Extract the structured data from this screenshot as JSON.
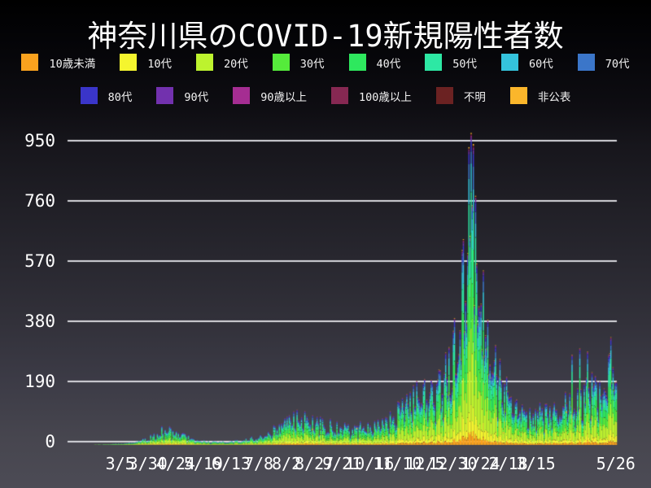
{
  "title": "神奈川県のCOVID-19新規陽性者数",
  "legend": {
    "rows": [
      [
        {
          "label": "10歳未満",
          "color": "#FAA21E"
        },
        {
          "label": "10代",
          "color": "#F5F52E"
        },
        {
          "label": "20代",
          "color": "#BDF32E"
        },
        {
          "label": "30代",
          "color": "#55EB3B"
        },
        {
          "label": "40代",
          "color": "#2EE85E"
        },
        {
          "label": "50代",
          "color": "#2DE8A4"
        },
        {
          "label": "60代",
          "color": "#34C3DC"
        },
        {
          "label": "70代",
          "color": "#3B76C9"
        }
      ],
      [
        {
          "label": "80代",
          "color": "#3A35C9"
        },
        {
          "label": "90代",
          "color": "#7231AE"
        },
        {
          "label": "90歳以上",
          "color": "#A52D92"
        },
        {
          "label": "100歳以上",
          "color": "#862852"
        },
        {
          "label": "不明",
          "color": "#6B2222"
        },
        {
          "label": "非公表",
          "color": "#FBB62B"
        }
      ]
    ]
  },
  "chart_data": {
    "type": "bar",
    "subtype": "stacked-daily-bars",
    "title": "神奈川県のCOVID-19新規陽性者数",
    "xlabel": "",
    "ylabel": "",
    "ylim": [
      0,
      1000
    ],
    "grid": true,
    "gridline_color": "#D9D9DE",
    "y_ticks": [
      {
        "label": "0",
        "value": 0
      },
      {
        "label": "190",
        "value": 190
      },
      {
        "label": "380",
        "value": 380
      },
      {
        "label": "570",
        "value": 570
      },
      {
        "label": "760",
        "value": 760
      },
      {
        "label": "950",
        "value": 950
      }
    ],
    "x_ticks": [
      {
        "label": "3/5",
        "day": 24
      },
      {
        "label": "3/30",
        "day": 49
      },
      {
        "label": "4/24",
        "day": 74
      },
      {
        "label": "5/19",
        "day": 99
      },
      {
        "label": "6/13",
        "day": 124
      },
      {
        "label": "7/8",
        "day": 149
      },
      {
        "label": "8/2",
        "day": 174
      },
      {
        "label": "8/27",
        "day": 199
      },
      {
        "label": "9/21",
        "day": 224
      },
      {
        "label": "10/16",
        "day": 249
      },
      {
        "label": "11/10",
        "day": 274
      },
      {
        "label": "12/5",
        "day": 299
      },
      {
        "label": "12/30",
        "day": 324
      },
      {
        "label": "1/24",
        "day": 349
      },
      {
        "label": "2/18",
        "day": 374
      },
      {
        "label": "3/15",
        "day": 399
      },
      {
        "label": "5/26",
        "day": 471
      }
    ],
    "days": 472,
    "daily_total_anchors": [
      [
        0,
        1
      ],
      [
        14,
        2
      ],
      [
        24,
        4
      ],
      [
        38,
        8
      ],
      [
        50,
        22
      ],
      [
        60,
        42
      ],
      [
        66,
        52
      ],
      [
        76,
        34
      ],
      [
        90,
        17
      ],
      [
        104,
        9
      ],
      [
        118,
        9
      ],
      [
        132,
        14
      ],
      [
        146,
        22
      ],
      [
        160,
        42
      ],
      [
        174,
        80
      ],
      [
        183,
        92
      ],
      [
        195,
        72
      ],
      [
        209,
        62
      ],
      [
        223,
        52
      ],
      [
        237,
        52
      ],
      [
        251,
        62
      ],
      [
        265,
        72
      ],
      [
        279,
        115
      ],
      [
        293,
        150
      ],
      [
        300,
        160
      ],
      [
        307,
        175
      ],
      [
        314,
        185
      ],
      [
        321,
        245
      ],
      [
        326,
        300
      ],
      [
        331,
        400
      ],
      [
        336,
        620
      ],
      [
        340,
        700
      ],
      [
        344,
        600
      ],
      [
        348,
        470
      ],
      [
        352,
        380
      ],
      [
        359,
        265
      ],
      [
        366,
        195
      ],
      [
        373,
        148
      ],
      [
        380,
        115
      ],
      [
        394,
        95
      ],
      [
        408,
        103
      ],
      [
        422,
        118
      ],
      [
        429,
        128
      ],
      [
        436,
        140
      ],
      [
        443,
        150
      ],
      [
        450,
        168
      ],
      [
        457,
        188
      ],
      [
        464,
        210
      ],
      [
        468,
        222
      ],
      [
        471,
        218
      ]
    ],
    "peak_day_overrides": [
      [
        338,
        940
      ],
      [
        340,
        985
      ],
      [
        342,
        950
      ],
      [
        431,
        285
      ],
      [
        438,
        305
      ],
      [
        445,
        295
      ],
      [
        466,
        340
      ]
    ],
    "age_groups": [
      {
        "label": "10歳未満",
        "color": "#FAA21E",
        "fraction": 0.045
      },
      {
        "label": "10代",
        "color": "#F5F52E",
        "fraction": 0.085
      },
      {
        "label": "20代",
        "color": "#BDF32E",
        "fraction": 0.235
      },
      {
        "label": "30代",
        "color": "#55EB3B",
        "fraction": 0.165
      },
      {
        "label": "40代",
        "color": "#2EE85E",
        "fraction": 0.15
      },
      {
        "label": "50代",
        "color": "#2DE8A4",
        "fraction": 0.125
      },
      {
        "label": "60代",
        "color": "#34C3DC",
        "fraction": 0.075
      },
      {
        "label": "70代",
        "color": "#3B76C9",
        "fraction": 0.055
      },
      {
        "label": "80代",
        "color": "#3A35C9",
        "fraction": 0.035
      },
      {
        "label": "90代",
        "color": "#7231AE",
        "fraction": 0.015
      },
      {
        "label": "90歳以上",
        "color": "#A52D92",
        "fraction": 0.005
      },
      {
        "label": "100歳以上",
        "color": "#862852",
        "fraction": 0.002
      },
      {
        "label": "不明",
        "color": "#6B2222",
        "fraction": 0.004
      },
      {
        "label": "非公表",
        "color": "#FBB62B",
        "fraction": 0.004
      }
    ]
  }
}
